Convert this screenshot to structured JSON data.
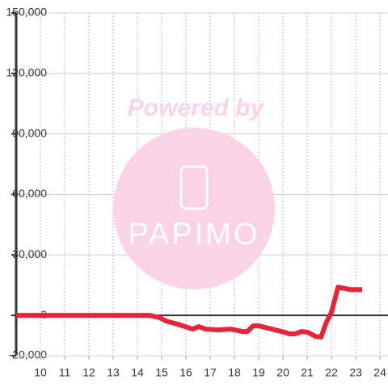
{
  "chart_data": {
    "type": "line",
    "watermark": {
      "top": "Powered by",
      "logo": "PAPIMO"
    },
    "x": [
      9,
      14.5,
      14.93,
      15.17,
      15.67,
      16.07,
      16.27,
      16.53,
      16.8,
      17.33,
      17.83,
      18.33,
      18.53,
      18.77,
      19,
      19.67,
      20.07,
      20.27,
      20.5,
      20.77,
      21.03,
      21.33,
      21.57,
      21.77,
      22,
      22.27,
      22.77,
      23.27
    ],
    "series": [
      {
        "color": "#e8243c",
        "values": [
          0,
          0,
          -1200,
          -2800,
          -4400,
          -6000,
          -6800,
          -5600,
          -6800,
          -7200,
          -6800,
          -8000,
          -8000,
          -5200,
          -5200,
          -7200,
          -8400,
          -9200,
          -9200,
          -8000,
          -8400,
          -10400,
          -10800,
          -4000,
          1600,
          14000,
          12800,
          12800
        ]
      }
    ],
    "xlim": [
      9,
      24.33
    ],
    "xticks": [
      10,
      11,
      12,
      13,
      14,
      15,
      16,
      17,
      18,
      19,
      20,
      21,
      22,
      23,
      24
    ],
    "ylim": [
      -20000,
      150000
    ],
    "yticks": [
      {
        "value": -20000,
        "label": "-20,000"
      },
      0,
      {
        "value": 30000,
        "label": "30,000"
      },
      {
        "value": 60000,
        "label": "60,000"
      },
      {
        "value": 90000,
        "label": "90,000"
      },
      {
        "value": 120000,
        "label": "120,000"
      },
      {
        "value": 150000,
        "label": "150,000"
      }
    ],
    "grid": true
  }
}
